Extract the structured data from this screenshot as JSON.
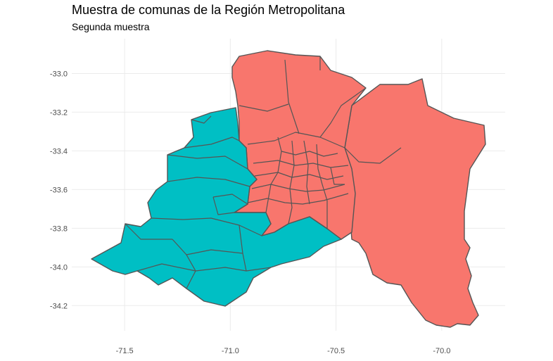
{
  "title": "Muestra de comunas de la Región Metropolitana",
  "subtitle": "Segunda muestra",
  "colors": {
    "sample_a": "#f8766d",
    "sample_b": "#00bfc4",
    "border": "#555555",
    "grid": "#ebebeb"
  },
  "chart_data": {
    "type": "map",
    "x_ticks": [
      "-71.5",
      "-71.0",
      "-70.5",
      "-70.0"
    ],
    "y_ticks": [
      "-33.0",
      "-33.2",
      "-33.4",
      "-33.6",
      "-33.8",
      "-34.0",
      "-34.2"
    ],
    "x_tick_values": [
      -71.5,
      -71.0,
      -70.5,
      -70.0
    ],
    "y_tick_values": [
      -33.0,
      -33.2,
      -33.4,
      -33.6,
      -33.8,
      -34.0,
      -34.2
    ],
    "xlim": [
      -71.75,
      -69.7
    ],
    "ylim": [
      -34.33,
      -32.82
    ],
    "grid": true,
    "legend": "none",
    "fill_groups": [
      "sample_a",
      "sample_b"
    ]
  }
}
